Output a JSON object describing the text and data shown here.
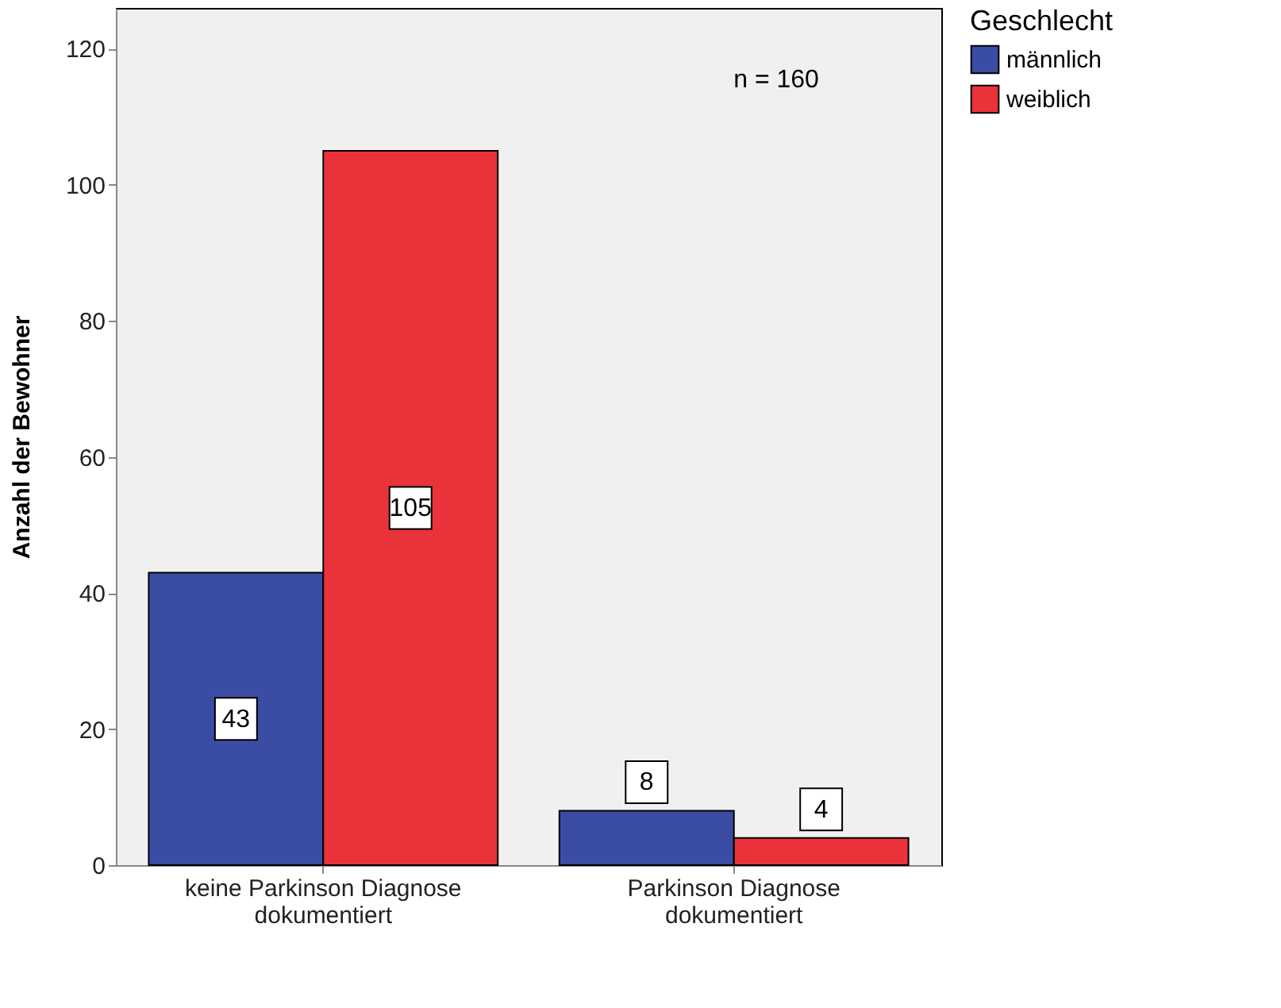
{
  "chart_data": {
    "type": "bar",
    "ylabel": "Anzahl der Bewohner",
    "legend_title": "Geschlecht",
    "categories": [
      "keine Parkinson Diagnose dokumentiert",
      "Parkinson Diagnose dokumentiert"
    ],
    "series": [
      {
        "name": "männlich",
        "color": "#3a4ca3",
        "values": [
          43,
          8
        ]
      },
      {
        "name": "weiblich",
        "color": "#e9323a",
        "values": [
          105,
          4
        ]
      }
    ],
    "ylim": [
      0,
      126
    ],
    "yticks": [
      0,
      20,
      40,
      60,
      80,
      100,
      120
    ],
    "grid": false,
    "legend": "top right",
    "data_labels": true,
    "annotations": [
      "n = 160"
    ]
  }
}
